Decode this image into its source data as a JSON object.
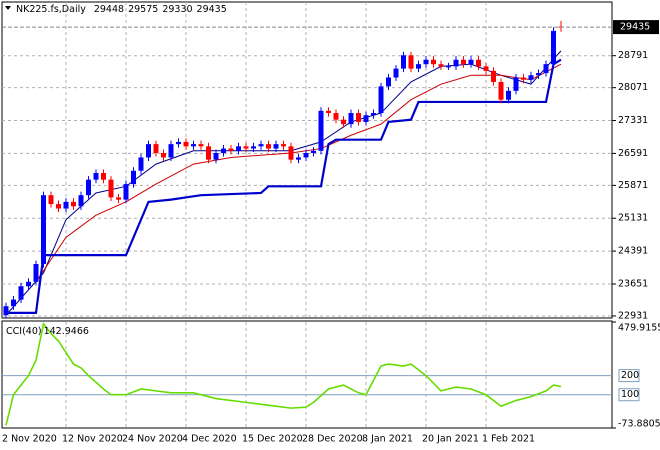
{
  "chart_data": [
    {
      "type": "candlestick",
      "title": "NK225.fs,Daily",
      "categories": [
        "2 Nov 2020",
        null,
        null,
        null,
        null,
        null,
        null,
        null,
        "12 Nov 2020",
        null,
        null,
        null,
        null,
        null,
        null,
        null,
        "24 Nov 2020",
        null,
        null,
        null,
        null,
        null,
        null,
        null,
        "4 Dec 2020",
        null,
        null,
        null,
        null,
        null,
        null,
        null,
        "15 Dec 2020",
        null,
        null,
        null,
        null,
        null,
        null,
        null,
        "28 Dec 2020",
        null,
        null,
        null,
        null,
        null,
        null,
        null,
        "8 Jan 2021",
        null,
        null,
        null,
        null,
        null,
        null,
        null,
        "20 Jan 2021",
        null,
        null,
        null,
        null,
        null,
        null,
        null,
        "1 Feb 2021",
        null,
        null,
        null,
        null,
        null,
        null,
        null,
        null,
        null,
        null
      ],
      "open": [
        22950,
        23150,
        23300,
        23600,
        23700,
        24100,
        25650,
        25450,
        25350,
        25500,
        25400,
        25650,
        26000,
        26150,
        26000,
        25600,
        25550,
        25900,
        26200,
        26500,
        26800,
        26600,
        26500,
        26800,
        26850,
        26750,
        26800,
        26750,
        26450,
        26600,
        26700,
        26650,
        26750,
        26700,
        26750,
        26800,
        26700,
        26800,
        26750,
        26450,
        26500,
        26600,
        26650,
        27550,
        27500,
        27350,
        27250,
        27500,
        27300,
        27450,
        27500,
        28100,
        28300,
        28500,
        28800,
        28500,
        28600,
        28700,
        28600,
        28550,
        28550,
        28700,
        28600,
        28700,
        28550,
        28450,
        28200,
        27800,
        28000,
        28300,
        28250,
        28350,
        28400,
        28600,
        29448
      ],
      "high": [
        23230,
        23380,
        23680,
        23780,
        24180,
        25730,
        25730,
        25530,
        25580,
        25580,
        25730,
        26080,
        26230,
        26230,
        26080,
        25680,
        25980,
        26280,
        26580,
        26880,
        26880,
        26680,
        26880,
        26930,
        26930,
        26880,
        26880,
        26830,
        26680,
        26780,
        26780,
        26830,
        26830,
        26830,
        26880,
        26880,
        26880,
        26880,
        26830,
        26580,
        26680,
        26730,
        27630,
        27630,
        27580,
        27430,
        27580,
        27580,
        27530,
        27580,
        28180,
        28380,
        28580,
        28880,
        28880,
        28680,
        28780,
        28780,
        28680,
        28630,
        28780,
        28780,
        28780,
        28780,
        28630,
        28530,
        28280,
        28080,
        28380,
        28380,
        28430,
        28480,
        28680,
        29430,
        29575
      ],
      "low": [
        22870,
        23070,
        23220,
        23520,
        23620,
        24020,
        25370,
        25270,
        25270,
        25320,
        25320,
        25570,
        25920,
        25920,
        25520,
        25470,
        25470,
        25820,
        26120,
        26420,
        26520,
        26420,
        26420,
        26720,
        26670,
        26670,
        26670,
        26370,
        26370,
        26520,
        26570,
        26570,
        26620,
        26620,
        26670,
        26620,
        26620,
        26670,
        26370,
        26370,
        26420,
        26520,
        26570,
        27420,
        27270,
        27170,
        27170,
        27220,
        27220,
        27370,
        27420,
        28020,
        28220,
        28420,
        28420,
        28420,
        28520,
        28520,
        28470,
        28470,
        28470,
        28520,
        28520,
        28470,
        28370,
        28120,
        27720,
        27720,
        27920,
        28170,
        28170,
        28270,
        28320,
        28520,
        29330
      ],
      "close": [
        23150,
        23300,
        23600,
        23700,
        24100,
        25650,
        25450,
        25350,
        25500,
        25400,
        25650,
        26000,
        26150,
        26000,
        25600,
        25550,
        25900,
        26200,
        26500,
        26800,
        26600,
        26500,
        26800,
        26850,
        26750,
        26800,
        26750,
        26450,
        26600,
        26700,
        26650,
        26750,
        26700,
        26750,
        26800,
        26700,
        26800,
        26750,
        26450,
        26500,
        26600,
        26650,
        27550,
        27500,
        27350,
        27250,
        27500,
        27300,
        27450,
        27500,
        28100,
        28300,
        28500,
        28800,
        28500,
        28600,
        28700,
        28600,
        28550,
        28550,
        28700,
        28600,
        28700,
        28550,
        28450,
        28200,
        27800,
        28000,
        28300,
        28250,
        28350,
        28400,
        28600,
        29350,
        29435
      ],
      "up_color": "#0000ff",
      "down_color": "#ff0000",
      "lines": [
        {
          "color": "#00008b",
          "width": 1,
          "x": [
            0,
            5,
            8,
            12,
            16,
            20,
            25,
            30,
            38,
            42,
            46,
            50,
            54,
            58,
            62,
            66,
            70,
            74
          ],
          "values": [
            22950,
            23900,
            25100,
            25700,
            25850,
            26350,
            26650,
            26650,
            26650,
            26850,
            27300,
            27500,
            28200,
            28550,
            28600,
            28350,
            28150,
            28900
          ]
        },
        {
          "color": "#cc0000",
          "width": 1,
          "x": [
            4,
            8,
            12,
            16,
            20,
            25,
            30,
            38,
            42,
            46,
            50,
            54,
            58,
            62,
            66,
            70,
            74
          ],
          "values": [
            23700,
            24700,
            25200,
            25500,
            25900,
            26350,
            26500,
            26600,
            26700,
            27000,
            27250,
            27800,
            28150,
            28350,
            28350,
            28250,
            28600
          ]
        },
        {
          "color": "#0000cc",
          "width": 2.2,
          "x": [
            0,
            4,
            5,
            16,
            19,
            22,
            26,
            34,
            35,
            42,
            43,
            44,
            50,
            51,
            54,
            55,
            72,
            73,
            74
          ],
          "values": [
            23000,
            23000,
            24300,
            24300,
            25500,
            25550,
            25650,
            25700,
            25850,
            25850,
            26800,
            26900,
            26900,
            27300,
            27350,
            27750,
            27750,
            28600,
            28700
          ]
        }
      ],
      "ylim": [
        22885,
        30000
      ],
      "yticks": [
        22931,
        23651,
        24391,
        25131,
        25871,
        26591,
        27331,
        28071,
        28791
      ],
      "last_price": 29435,
      "grid": true
    },
    {
      "type": "line",
      "title": "CCI(40)",
      "last_value": 142.9466,
      "series": [
        {
          "color": "#66dd00",
          "x": [
            0,
            1,
            2,
            3,
            4,
            5,
            6,
            7,
            8,
            9,
            10,
            11,
            13,
            14,
            16,
            18,
            20,
            22,
            25,
            28,
            32,
            36,
            38,
            40,
            41,
            43,
            45,
            47,
            48,
            50,
            51,
            53,
            54,
            56,
            58,
            60,
            62,
            64,
            66,
            68,
            70,
            72,
            73,
            74
          ],
          "values": [
            -60,
            100,
            150,
            200,
            280,
            470,
            420,
            380,
            320,
            260,
            240,
            200,
            130,
            100,
            100,
            130,
            120,
            110,
            110,
            80,
            60,
            40,
            30,
            35,
            60,
            130,
            150,
            110,
            100,
            250,
            260,
            250,
            260,
            200,
            120,
            140,
            130,
            100,
            40,
            70,
            90,
            120,
            150,
            142.9466
          ]
        }
      ],
      "ylim": [
        -73.8805,
        479.9155
      ],
      "yticks": [
        -73.8805,
        479.9155
      ],
      "levels": [
        100,
        200
      ],
      "grid": true
    }
  ]
}
